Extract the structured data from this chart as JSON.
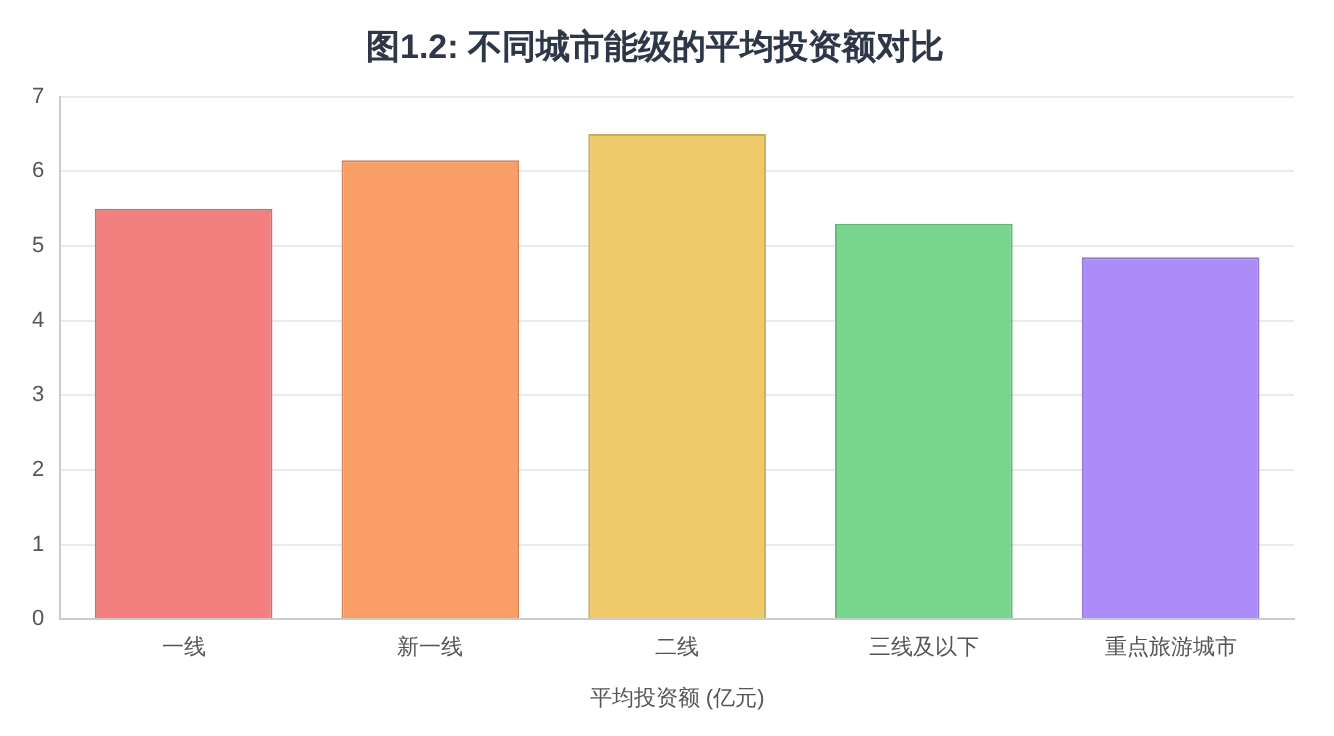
{
  "chart_data": {
    "type": "bar",
    "title": "图1.2: 不同城市能级的平均投资额对比",
    "xlabel": "平均投资额 (亿元)",
    "categories": [
      "一线",
      "新一线",
      "二线",
      "三线及以下",
      "重点旅游城市"
    ],
    "values": [
      5.5,
      6.15,
      6.5,
      5.3,
      4.85
    ],
    "colors": [
      "#f47f7f",
      "#f99e66",
      "#eec96a",
      "#78d58e",
      "#ab8cf8"
    ],
    "ylim": [
      0,
      7
    ],
    "yticks": [
      0,
      1,
      2,
      3,
      4,
      5,
      6,
      7
    ],
    "grid": "y",
    "legend": false
  }
}
